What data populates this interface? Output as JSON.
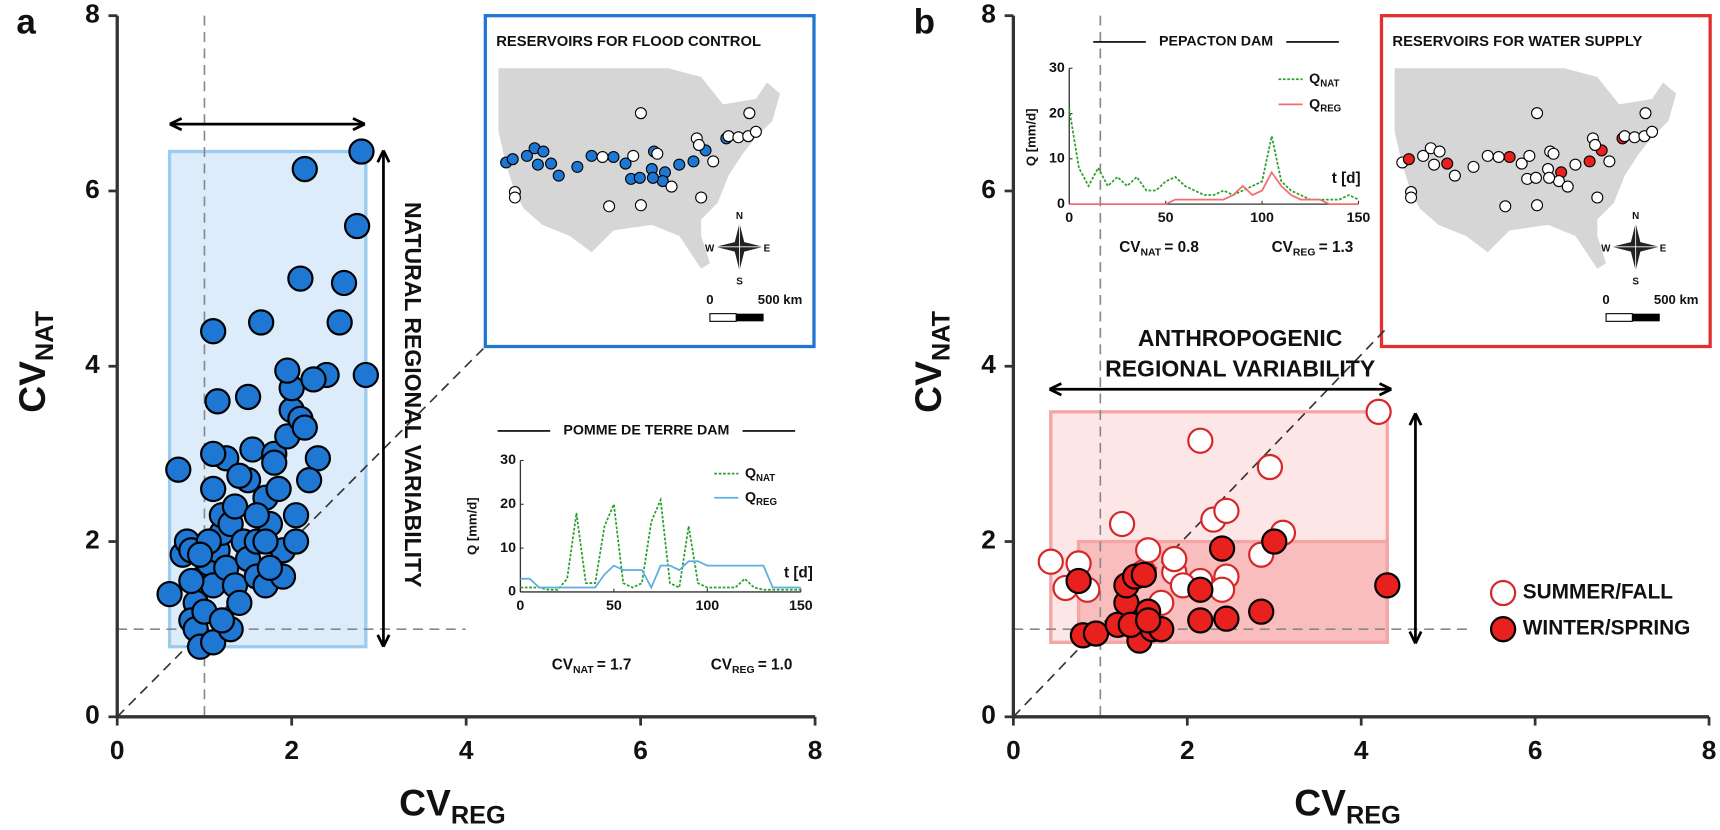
{
  "chart_data": [
    {
      "type": "scatter",
      "panel_label": "a",
      "x_label": {
        "text": "CV",
        "subscript": "REG"
      },
      "y_label": {
        "text": "CV",
        "subscript": "NAT"
      },
      "xlim": [
        0,
        8
      ],
      "ylim": [
        0,
        8
      ],
      "xticks": [
        0,
        2,
        4,
        6,
        8
      ],
      "yticks": [
        0,
        2,
        4,
        6,
        8
      ],
      "reference_lines": {
        "x": 1,
        "y": 1
      },
      "identity_line": true,
      "ranges": [
        {
          "x": [
            0.6,
            2.85
          ],
          "y": [
            0.8,
            6.45
          ],
          "color": "#ddecfb",
          "edge": "#9ccbf0"
        }
      ],
      "series": [
        {
          "color": "#1f77d4",
          "x": [
            0.6,
            0.7,
            0.75,
            0.8,
            0.85,
            0.9,
            0.85,
            0.9,
            0.95,
            1.0,
            1.0,
            1.05,
            1.1,
            1.1,
            1.1,
            1.15,
            1.2,
            1.2,
            1.25,
            1.3,
            1.3,
            1.35,
            1.4,
            1.45,
            1.5,
            1.5,
            1.55,
            1.6,
            1.6,
            1.7,
            1.7,
            1.75,
            1.8,
            1.85,
            1.9,
            1.9,
            1.95,
            2.0,
            2.0,
            2.05,
            2.1,
            2.15,
            1.7,
            1.75,
            1.8,
            1.25,
            1.1,
            1.15,
            1.1,
            1.5,
            1.65,
            1.95,
            2.1,
            2.15,
            2.6,
            2.55,
            2.8,
            2.75,
            2.85,
            2.4,
            2.25,
            2.3,
            2.2,
            2.05,
            1.35,
            1.4,
            1.6,
            1.05,
            0.95,
            1.2,
            0.85
          ],
          "y": [
            1.4,
            2.82,
            1.85,
            2.0,
            1.9,
            1.3,
            1.1,
            1.0,
            0.8,
            1.6,
            1.2,
            1.75,
            1.5,
            0.85,
            2.6,
            1.9,
            2.1,
            2.3,
            1.7,
            2.2,
            1.0,
            1.5,
            1.3,
            2.0,
            1.8,
            2.7,
            3.05,
            2.0,
            1.6,
            2.5,
            1.5,
            2.2,
            3.0,
            2.6,
            1.6,
            1.9,
            3.2,
            3.5,
            3.75,
            2.3,
            3.4,
            3.3,
            2.0,
            1.7,
            2.9,
            2.95,
            3.0,
            3.6,
            4.4,
            3.65,
            4.5,
            3.95,
            5.0,
            6.25,
            4.95,
            4.5,
            6.45,
            5.6,
            3.9,
            3.9,
            3.85,
            2.95,
            2.7,
            2.0,
            2.4,
            2.75,
            2.3,
            2.0,
            1.85,
            1.1,
            1.55
          ]
        }
      ],
      "annotations": [
        "NATURAL REGIONAL VARIABILITY"
      ],
      "map": {
        "title": "RESERVOIRS FOR FLOOD CONTROL",
        "compass": [
          "N",
          "E",
          "S",
          "W"
        ],
        "scale_labels": [
          "0",
          "500 km"
        ]
      }
    },
    {
      "type": "line",
      "title": "POMME DE TERRE DAM",
      "x_label": "t [d]",
      "y_label": "Q [mm/d]",
      "xlim": [
        0,
        150
      ],
      "ylim": [
        0,
        30
      ],
      "xticks": [
        0,
        50,
        100,
        150
      ],
      "yticks": [
        0,
        10,
        20,
        30
      ],
      "x": [
        0,
        5,
        10,
        15,
        20,
        25,
        30,
        35,
        40,
        45,
        50,
        55,
        60,
        65,
        70,
        75,
        80,
        85,
        90,
        95,
        100,
        105,
        110,
        115,
        120,
        125,
        130,
        135,
        140,
        145,
        150
      ],
      "series": [
        {
          "name": {
            "text": "Q",
            "subscript": "NAT"
          },
          "color": "#2ca02c",
          "style": "dotted",
          "values": [
            1,
            1,
            1,
            0.5,
            0.5,
            3,
            18,
            2,
            2,
            15,
            20,
            2,
            1,
            2,
            16,
            21,
            2,
            1,
            15,
            2,
            1,
            1,
            1,
            1,
            3,
            1,
            0.5,
            0.5,
            0.5,
            0.5,
            0.5
          ]
        },
        {
          "name": {
            "text": "Q",
            "subscript": "REG"
          },
          "color": "#5dade2",
          "style": "solid",
          "values": [
            3,
            3,
            1,
            1,
            1,
            1,
            1,
            1,
            1,
            4,
            6,
            5,
            5,
            5,
            1,
            6,
            6,
            5,
            7,
            7,
            6,
            6,
            6,
            6,
            6,
            6,
            6,
            1,
            1,
            1,
            1
          ]
        }
      ],
      "annotations": [
        {
          "text": "CV",
          "subscript": "NAT",
          "suffix": "= 1.7"
        },
        {
          "text": "CV",
          "subscript": "REG",
          "suffix": "= 1.0"
        }
      ]
    },
    {
      "type": "scatter",
      "panel_label": "b",
      "x_label": {
        "text": "CV",
        "subscript": "REG"
      },
      "y_label": {
        "text": "CV",
        "subscript": "NAT"
      },
      "xlim": [
        0,
        8
      ],
      "ylim": [
        0,
        8
      ],
      "xticks": [
        0,
        2,
        4,
        6,
        8
      ],
      "yticks": [
        0,
        2,
        4,
        6,
        8
      ],
      "reference_lines": {
        "x": 1,
        "y": 1
      },
      "identity_line": true,
      "legend": "right",
      "ranges": [
        {
          "x": [
            0.43,
            4.3
          ],
          "y": [
            0.85,
            3.48
          ],
          "color": "#fde6e6",
          "edge": "#f5a5a5"
        },
        {
          "x": [
            0.75,
            4.3
          ],
          "y": [
            0.85,
            2.0
          ],
          "color": "#f9bdbd",
          "edge": "#f5a5a5"
        }
      ],
      "series": [
        {
          "name": "SUMMER/FALL",
          "color": "#d62728",
          "filled": false,
          "x": [
            0.43,
            0.6,
            0.75,
            0.85,
            1.25,
            1.5,
            1.55,
            1.85,
            1.85,
            2.15,
            2.15,
            2.3,
            2.45,
            2.45,
            2.4,
            2.85,
            2.95,
            3.1,
            4.2,
            1.95,
            1.7
          ],
          "y": [
            1.77,
            1.47,
            1.75,
            1.45,
            2.2,
            1.65,
            1.9,
            1.65,
            1.8,
            1.55,
            3.15,
            2.25,
            2.35,
            1.6,
            1.45,
            1.85,
            2.85,
            2.1,
            3.48,
            1.5,
            1.3
          ]
        },
        {
          "name": "WINTER/SPRING",
          "color": "#e8201e",
          "filled": true,
          "x": [
            0.75,
            0.8,
            0.95,
            1.2,
            1.3,
            1.3,
            1.4,
            1.5,
            1.55,
            1.45,
            1.6,
            1.7,
            1.35,
            2.15,
            2.15,
            2.4,
            2.45,
            2.85,
            3.0,
            4.3,
            1.55
          ],
          "y": [
            1.55,
            0.93,
            0.95,
            1.05,
            1.3,
            1.5,
            1.6,
            1.62,
            1.2,
            0.87,
            1.0,
            1.0,
            1.05,
            1.1,
            1.45,
            1.92,
            1.12,
            1.2,
            2.0,
            1.5,
            1.1
          ]
        }
      ],
      "annotations": [
        "ANTHROPOGENIC",
        "REGIONAL VARIABILITY"
      ],
      "map": {
        "title": "RESERVOIRS FOR WATER SUPPLY",
        "compass": [
          "N",
          "E",
          "S",
          "W"
        ],
        "scale_labels": [
          "0",
          "500 km"
        ]
      }
    },
    {
      "type": "line",
      "title": "PEPACTON DAM",
      "x_label": "t [d]",
      "y_label": "Q [mm/d]",
      "xlim": [
        0,
        150
      ],
      "ylim": [
        0,
        30
      ],
      "xticks": [
        0,
        50,
        100,
        150
      ],
      "yticks": [
        0,
        10,
        20,
        30
      ],
      "x": [
        0,
        5,
        10,
        15,
        20,
        25,
        30,
        35,
        40,
        45,
        50,
        55,
        60,
        65,
        70,
        75,
        80,
        85,
        90,
        95,
        100,
        105,
        110,
        115,
        120,
        125,
        130,
        135,
        140,
        145,
        150
      ],
      "series": [
        {
          "name": {
            "text": "Q",
            "subscript": "NAT"
          },
          "color": "#2ca02c",
          "style": "dotted",
          "values": [
            21,
            8,
            4,
            8,
            4,
            6,
            4,
            6,
            3,
            3,
            5,
            6,
            4,
            3,
            2,
            2,
            3,
            2,
            3,
            4,
            5,
            15,
            5,
            3,
            2,
            1,
            1,
            1,
            1,
            2,
            1
          ]
        },
        {
          "name": {
            "text": "Q",
            "subscript": "REG"
          },
          "color": "#f26d6d",
          "style": "solid",
          "values": [
            0,
            0,
            0,
            0,
            0,
            0,
            0,
            0,
            0,
            0,
            0,
            1,
            1,
            1,
            1,
            1,
            1,
            2,
            4,
            2,
            3,
            7,
            4,
            2,
            1,
            1,
            1,
            0,
            0,
            0,
            0
          ]
        }
      ],
      "annotations": [
        {
          "text": "CV",
          "subscript": "NAT",
          "suffix": "= 0.8"
        },
        {
          "text": "CV",
          "subscript": "REG",
          "suffix": "= 1.3"
        }
      ]
    }
  ]
}
